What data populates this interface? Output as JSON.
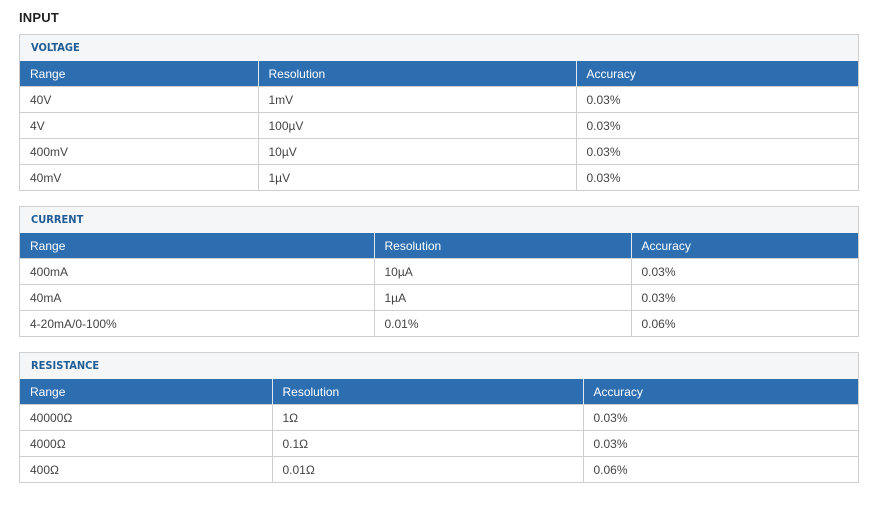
{
  "page_title": "INPUT",
  "sections": [
    {
      "title": "VOLTAGE",
      "headers": [
        "Range",
        "Resolution",
        "Accuracy"
      ],
      "rows": [
        [
          "40V",
          "1mV",
          "0.03%"
        ],
        [
          "4V",
          "100µV",
          "0.03%"
        ],
        [
          "400mV",
          "10µV",
          "0.03%"
        ],
        [
          "40mV",
          "1µV",
          "0.03%"
        ]
      ]
    },
    {
      "title": "CURRENT",
      "headers": [
        "Range",
        "Resolution",
        "Accuracy"
      ],
      "rows": [
        [
          "400mA",
          "10µA",
          "0.03%"
        ],
        [
          "40mA",
          "1µA",
          "0.03%"
        ],
        [
          "4-20mA/0-100%",
          "0.01%",
          "0.06%"
        ]
      ]
    },
    {
      "title": "RESISTANCE",
      "headers": [
        "Range",
        "Resolution",
        "Accuracy"
      ],
      "rows": [
        [
          "40000Ω",
          "1Ω",
          "0.03%"
        ],
        [
          "4000Ω",
          "0.1Ω",
          "0.03%"
        ],
        [
          "400Ω",
          "0.01Ω",
          "0.06%"
        ]
      ]
    }
  ]
}
